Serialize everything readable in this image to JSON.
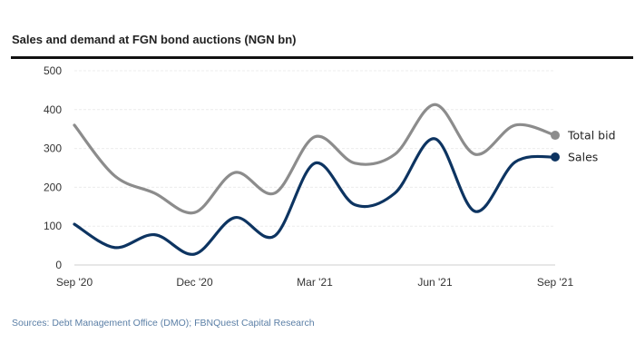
{
  "chart_data": {
    "type": "line",
    "title": "Sales and demand at FGN bond auctions (NGN bn)",
    "source": "Sources: Debt Management Office (DMO); FBNQuest Capital Research",
    "x": [
      "Sep '20",
      "Oct '20",
      "Nov '20",
      "Dec '20",
      "Jan '21",
      "Feb '21",
      "Mar '21",
      "Apr '21",
      "May '21",
      "Jun '21",
      "Jul '21",
      "Aug '21",
      "Sep '21"
    ],
    "x_tick_labels": [
      "Sep '20",
      "Dec '20",
      "Mar '21",
      "Jun '21",
      "Sep '21"
    ],
    "y_tick_labels": [
      "0",
      "100",
      "200",
      "300",
      "400",
      "500"
    ],
    "ylim": [
      0,
      500
    ],
    "grid": true,
    "legend": "end-of-line labels, right",
    "series": [
      {
        "name": "Total bid",
        "color": "#8c8c8c",
        "values": [
          360,
          230,
          185,
          135,
          238,
          185,
          330,
          262,
          285,
          413,
          285,
          360,
          334
        ]
      },
      {
        "name": "Sales",
        "color": "#0d3461",
        "values": [
          105,
          45,
          78,
          28,
          122,
          75,
          262,
          155,
          185,
          325,
          138,
          265,
          278
        ]
      }
    ]
  }
}
